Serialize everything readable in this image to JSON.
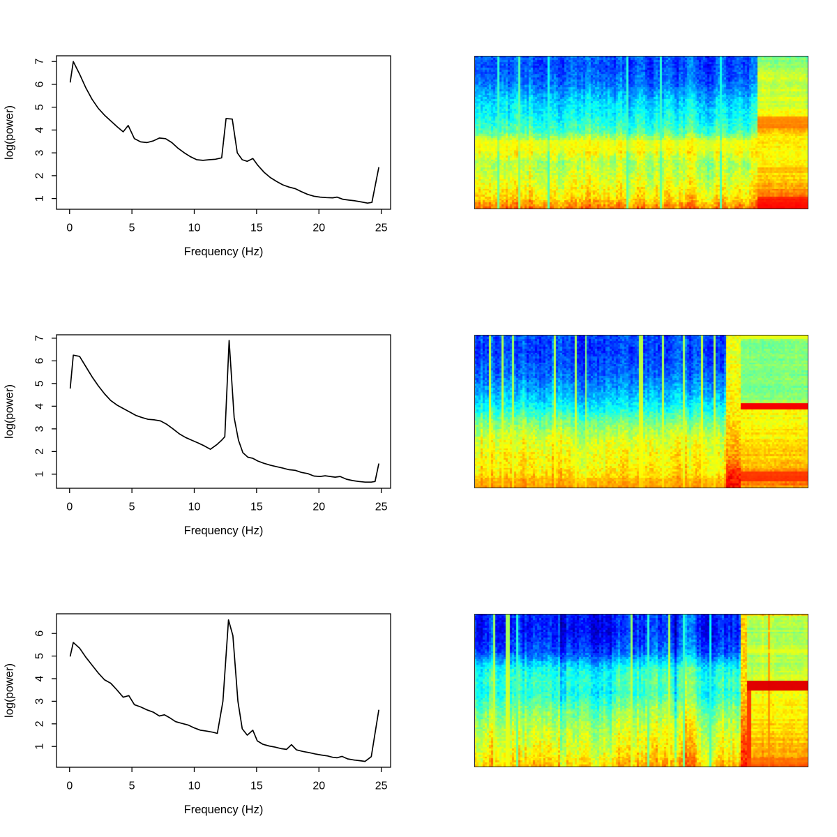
{
  "figure": {
    "background": "#ffffff",
    "line_color": "#000000",
    "n_rows": 3,
    "n_cols": 2
  },
  "chart_data": [
    {
      "type": "line",
      "panel": "row1-left",
      "xlabel": "Frequency (Hz)",
      "ylabel": "log(power)",
      "xlim": [
        -1.05,
        25.75
      ],
      "ylim": [
        0.53,
        7.25
      ],
      "xticks": [
        0,
        5,
        10,
        15,
        20,
        25
      ],
      "yticks": [
        1,
        2,
        3,
        4,
        5,
        6,
        7
      ],
      "line_color": "#000000",
      "grid": false,
      "x": [
        0.05,
        0.3,
        0.8,
        1.3,
        1.8,
        2.3,
        2.8,
        3.3,
        3.8,
        4.3,
        4.7,
        5.2,
        5.7,
        6.2,
        6.7,
        7.2,
        7.7,
        8.2,
        8.7,
        9.2,
        9.7,
        10.2,
        10.7,
        11.2,
        11.7,
        12.2,
        12.55,
        13.05,
        13.45,
        13.85,
        14.25,
        14.7,
        15.1,
        15.6,
        16.1,
        16.6,
        17.1,
        17.6,
        18.1,
        18.6,
        19.1,
        19.6,
        20.1,
        20.6,
        21.1,
        21.45,
        21.9,
        22.4,
        22.9,
        23.4,
        23.9,
        24.25,
        24.8
      ],
      "y": [
        6.1,
        7.0,
        6.45,
        5.85,
        5.35,
        4.95,
        4.65,
        4.4,
        4.15,
        3.92,
        4.2,
        3.62,
        3.48,
        3.45,
        3.52,
        3.65,
        3.62,
        3.45,
        3.2,
        3.0,
        2.83,
        2.7,
        2.67,
        2.7,
        2.72,
        2.78,
        4.5,
        4.48,
        3.0,
        2.7,
        2.63,
        2.75,
        2.45,
        2.15,
        1.92,
        1.75,
        1.6,
        1.5,
        1.43,
        1.3,
        1.18,
        1.1,
        1.06,
        1.04,
        1.03,
        1.06,
        0.97,
        0.93,
        0.9,
        0.85,
        0.8,
        0.83,
        2.35
      ]
    },
    {
      "type": "heatmap",
      "panel": "row1-right",
      "colormap": "jet",
      "description": "spectrogram, time x frequency, low power (blue) at high frequencies, high power (yellow/red) at low frequencies; warmer uniform segment on right 15%",
      "seed": 11,
      "grid": {
        "cols": 160,
        "rows": 78
      },
      "split": 0.849,
      "transition": null,
      "main_profile": [
        [
          0,
          0.22
        ],
        [
          0.06,
          0.2
        ],
        [
          0.18,
          0.24
        ],
        [
          0.3,
          0.34
        ],
        [
          0.42,
          0.4
        ],
        [
          0.5,
          0.46
        ],
        [
          0.56,
          0.6
        ],
        [
          0.63,
          0.62
        ],
        [
          0.7,
          0.55
        ],
        [
          0.78,
          0.58
        ],
        [
          0.86,
          0.62
        ],
        [
          0.93,
          0.66
        ],
        [
          0.97,
          0.72
        ],
        [
          1,
          0.76
        ]
      ],
      "right_profile": [
        [
          0,
          0.48
        ],
        [
          0.08,
          0.55
        ],
        [
          0.2,
          0.58
        ],
        [
          0.35,
          0.6
        ],
        [
          0.42,
          0.7
        ],
        [
          0.48,
          0.72
        ],
        [
          0.55,
          0.64
        ],
        [
          0.65,
          0.62
        ],
        [
          0.75,
          0.66
        ],
        [
          0.85,
          0.7
        ],
        [
          0.92,
          0.78
        ],
        [
          0.97,
          0.86
        ],
        [
          1,
          0.88
        ]
      ],
      "hbands": [
        {
          "region": "right",
          "t0": 0.4,
          "t1": 0.48,
          "v": 0.76,
          "mix": 0.7
        },
        {
          "region": "right",
          "t0": 0.73,
          "t1": 0.77,
          "v": 0.72,
          "mix": 0.5
        },
        {
          "region": "right",
          "t0": 0.92,
          "t1": 1.0,
          "v": 0.86,
          "mix": 0.75
        },
        {
          "region": "main",
          "t0": 0.55,
          "t1": 0.63,
          "v": 0.62,
          "mix": 0.45
        }
      ],
      "vlines": [
        {
          "region": "main",
          "x": 0.07,
          "v": 0.45,
          "w": 0.004
        },
        {
          "region": "main",
          "x": 0.135,
          "v": 0.5,
          "w": 0.003
        },
        {
          "region": "main",
          "x": 0.22,
          "v": 0.42,
          "w": 0.003
        },
        {
          "region": "main",
          "x": 0.46,
          "v": 0.44,
          "w": 0.003
        },
        {
          "region": "main",
          "x": 0.56,
          "v": 0.45,
          "w": 0.003
        },
        {
          "region": "main",
          "x": 0.74,
          "v": 0.42,
          "w": 0.003
        }
      ],
      "streak_amp": 0.09,
      "noise_amp": 0.05
    },
    {
      "type": "line",
      "panel": "row2-left",
      "xlabel": "Frequency (Hz)",
      "ylabel": "log(power)",
      "xlim": [
        -1.05,
        25.75
      ],
      "ylim": [
        0.38,
        7.15
      ],
      "xticks": [
        0,
        5,
        10,
        15,
        20,
        25
      ],
      "yticks": [
        1,
        2,
        3,
        4,
        5,
        6,
        7
      ],
      "line_color": "#000000",
      "grid": false,
      "x": [
        0.05,
        0.3,
        0.8,
        1.3,
        1.8,
        2.3,
        2.8,
        3.3,
        3.8,
        4.3,
        4.8,
        5.3,
        5.8,
        6.3,
        6.8,
        7.3,
        7.8,
        8.3,
        8.8,
        9.3,
        9.8,
        10.3,
        10.8,
        11.3,
        11.8,
        12.2,
        12.45,
        12.8,
        13.2,
        13.55,
        13.9,
        14.3,
        14.7,
        15.1,
        15.6,
        16.1,
        16.6,
        17.1,
        17.6,
        18.1,
        18.6,
        19.1,
        19.6,
        20.1,
        20.5,
        20.9,
        21.3,
        21.7,
        22.2,
        22.7,
        23.2,
        23.7,
        24.2,
        24.5,
        24.8
      ],
      "y": [
        4.8,
        6.25,
        6.2,
        5.75,
        5.3,
        4.9,
        4.55,
        4.25,
        4.05,
        3.9,
        3.75,
        3.6,
        3.5,
        3.42,
        3.4,
        3.35,
        3.2,
        3.0,
        2.78,
        2.62,
        2.5,
        2.38,
        2.25,
        2.1,
        2.3,
        2.5,
        2.65,
        6.9,
        3.5,
        2.5,
        1.95,
        1.75,
        1.7,
        1.58,
        1.48,
        1.4,
        1.33,
        1.27,
        1.2,
        1.17,
        1.08,
        1.03,
        0.92,
        0.9,
        0.93,
        0.9,
        0.87,
        0.9,
        0.78,
        0.72,
        0.68,
        0.65,
        0.65,
        0.68,
        1.45
      ]
    },
    {
      "type": "heatmap",
      "panel": "row2-right",
      "colormap": "jet",
      "description": "spectrogram with yellow/orange vertical transition band at ~76-80% of width; right segment green on top with sharp thin red horizontal line mid-height, yellow-orange below, red band near bottom",
      "seed": 23,
      "grid": {
        "cols": 160,
        "rows": 78
      },
      "split": 0.801,
      "transition": {
        "x0": 0.755,
        "x1": 0.801,
        "profile": [
          [
            0,
            0.6
          ],
          [
            0.3,
            0.62
          ],
          [
            0.5,
            0.64
          ],
          [
            0.8,
            0.72
          ],
          [
            0.92,
            0.85
          ],
          [
            1,
            0.88
          ]
        ]
      },
      "main_profile": [
        [
          0,
          0.2
        ],
        [
          0.1,
          0.18
        ],
        [
          0.25,
          0.22
        ],
        [
          0.38,
          0.3
        ],
        [
          0.48,
          0.38
        ],
        [
          0.58,
          0.5
        ],
        [
          0.68,
          0.58
        ],
        [
          0.78,
          0.62
        ],
        [
          0.88,
          0.64
        ],
        [
          0.95,
          0.68
        ],
        [
          1,
          0.72
        ]
      ],
      "right_profile": [
        [
          0,
          0.62
        ],
        [
          0.02,
          0.5
        ],
        [
          0.3,
          0.5
        ],
        [
          0.43,
          0.52
        ],
        [
          0.5,
          0.62
        ],
        [
          0.62,
          0.63
        ],
        [
          0.72,
          0.65
        ],
        [
          0.82,
          0.68
        ],
        [
          0.9,
          0.72
        ],
        [
          0.96,
          0.78
        ],
        [
          1,
          0.72
        ]
      ],
      "hbands": [
        {
          "region": "right",
          "t0": 0.455,
          "t1": 0.485,
          "v": 0.9,
          "mix": 0.95
        },
        {
          "region": "right",
          "t0": 0.0,
          "t1": 0.02,
          "v": 0.62,
          "mix": 0.8
        },
        {
          "region": "right",
          "t0": 0.9,
          "t1": 0.965,
          "v": 0.84,
          "mix": 0.8
        },
        {
          "region": "main",
          "t0": 0.93,
          "t1": 1.0,
          "v": 0.72,
          "mix": 0.4
        }
      ],
      "vlines": [
        {
          "region": "main",
          "x": 0.045,
          "v": 0.62,
          "w": 0.0035
        },
        {
          "region": "main",
          "x": 0.085,
          "v": 0.6,
          "w": 0.003
        },
        {
          "region": "main",
          "x": 0.115,
          "v": 0.58,
          "w": 0.003
        },
        {
          "region": "main",
          "x": 0.24,
          "v": 0.62,
          "w": 0.0035
        },
        {
          "region": "main",
          "x": 0.305,
          "v": 0.6,
          "w": 0.003
        },
        {
          "region": "main",
          "x": 0.335,
          "v": 0.58,
          "w": 0.003
        },
        {
          "region": "main",
          "x": 0.425,
          "v": 0.6,
          "w": 0.003
        },
        {
          "region": "main",
          "x": 0.5,
          "v": 0.62,
          "w": 0.0035
        },
        {
          "region": "main",
          "x": 0.565,
          "v": 0.6,
          "w": 0.003
        },
        {
          "region": "main",
          "x": 0.63,
          "v": 0.58,
          "w": 0.003
        },
        {
          "region": "main",
          "x": 0.685,
          "v": 0.62,
          "w": 0.003
        },
        {
          "region": "main",
          "x": 0.72,
          "v": 0.6,
          "w": 0.003
        }
      ],
      "streak_amp": 0.08,
      "noise_amp": 0.05
    },
    {
      "type": "line",
      "panel": "row3-left",
      "xlabel": "Frequency (Hz)",
      "ylabel": "log(power)",
      "xlim": [
        -1.05,
        25.75
      ],
      "ylim": [
        0.08,
        6.87
      ],
      "xticks": [
        0,
        5,
        10,
        15,
        20,
        25
      ],
      "yticks": [
        1,
        2,
        3,
        4,
        5,
        6
      ],
      "line_color": "#000000",
      "grid": false,
      "x": [
        0.05,
        0.3,
        0.8,
        1.3,
        1.8,
        2.3,
        2.8,
        3.3,
        3.8,
        4.3,
        4.75,
        5.2,
        5.7,
        6.2,
        6.7,
        7.2,
        7.6,
        8.0,
        8.5,
        9.0,
        9.5,
        10.0,
        10.5,
        11.0,
        11.5,
        11.85,
        12.3,
        12.75,
        13.1,
        13.5,
        13.85,
        14.25,
        14.7,
        15.05,
        15.5,
        16.0,
        16.5,
        17.0,
        17.4,
        17.8,
        18.2,
        18.7,
        19.2,
        19.7,
        20.2,
        20.7,
        21.1,
        21.45,
        21.85,
        22.3,
        22.8,
        23.3,
        23.7,
        24.2,
        24.8
      ],
      "y": [
        5.0,
        5.6,
        5.35,
        4.95,
        4.6,
        4.25,
        3.95,
        3.8,
        3.5,
        3.18,
        3.25,
        2.85,
        2.75,
        2.62,
        2.52,
        2.35,
        2.4,
        2.28,
        2.1,
        2.02,
        1.95,
        1.82,
        1.72,
        1.68,
        1.63,
        1.58,
        3.0,
        6.6,
        5.9,
        3.0,
        1.78,
        1.5,
        1.72,
        1.25,
        1.1,
        1.02,
        0.97,
        0.9,
        0.87,
        1.08,
        0.85,
        0.78,
        0.73,
        0.67,
        0.62,
        0.58,
        0.52,
        0.5,
        0.56,
        0.45,
        0.4,
        0.37,
        0.34,
        0.55,
        2.6
      ]
    },
    {
      "type": "heatmap",
      "panel": "row3-right",
      "colormap": "jet",
      "description": "spectrogram with many cyan/yellow vertical streaks through blue region; right segment yellow-green on top, thick red horizontal band mid-height, yellow-orange below with red vertical lines",
      "seed": 37,
      "grid": {
        "cols": 160,
        "rows": 78
      },
      "split": 0.818,
      "transition": {
        "x0": 0.801,
        "x1": 0.818,
        "profile": [
          [
            0,
            0.68
          ],
          [
            0.4,
            0.66
          ],
          [
            0.6,
            0.7
          ],
          [
            0.85,
            0.8
          ],
          [
            1,
            0.85
          ]
        ]
      },
      "main_profile": [
        [
          0,
          0.17
        ],
        [
          0.12,
          0.16
        ],
        [
          0.25,
          0.22
        ],
        [
          0.36,
          0.4
        ],
        [
          0.44,
          0.44
        ],
        [
          0.52,
          0.42
        ],
        [
          0.62,
          0.5
        ],
        [
          0.72,
          0.56
        ],
        [
          0.82,
          0.6
        ],
        [
          0.92,
          0.64
        ],
        [
          1,
          0.7
        ]
      ],
      "right_profile": [
        [
          0,
          0.7
        ],
        [
          0.02,
          0.55
        ],
        [
          0.12,
          0.53
        ],
        [
          0.25,
          0.56
        ],
        [
          0.35,
          0.54
        ],
        [
          0.42,
          0.6
        ],
        [
          0.52,
          0.62
        ],
        [
          0.65,
          0.64
        ],
        [
          0.78,
          0.66
        ],
        [
          0.88,
          0.7
        ],
        [
          0.95,
          0.74
        ],
        [
          1,
          0.78
        ]
      ],
      "hbands": [
        {
          "region": "right",
          "t0": 0.44,
          "t1": 0.495,
          "v": 0.92,
          "mix": 0.95
        },
        {
          "region": "right",
          "t0": 0.23,
          "t1": 0.26,
          "v": 0.62,
          "mix": 0.6
        },
        {
          "region": "right",
          "t0": 0.1,
          "t1": 0.12,
          "v": 0.6,
          "mix": 0.5
        },
        {
          "region": "right",
          "t0": 0.95,
          "t1": 1.0,
          "v": 0.78,
          "mix": 0.5
        }
      ],
      "vlines": [
        {
          "region": "main",
          "x": 0.06,
          "v": 0.58,
          "w": 0.004
        },
        {
          "region": "main",
          "x": 0.075,
          "v": 0.45,
          "w": 0.003
        },
        {
          "region": "main",
          "x": 0.1,
          "v": 0.6,
          "w": 0.004
        },
        {
          "region": "main",
          "x": 0.13,
          "v": 0.45,
          "w": 0.004
        },
        {
          "region": "main",
          "x": 0.35,
          "v": 0.6,
          "w": 0.003
        },
        {
          "region": "main",
          "x": 0.47,
          "v": 0.58,
          "w": 0.004
        },
        {
          "region": "main",
          "x": 0.52,
          "v": 0.45,
          "w": 0.003
        },
        {
          "region": "main",
          "x": 0.585,
          "v": 0.6,
          "w": 0.003
        },
        {
          "region": "main",
          "x": 0.63,
          "v": 0.45,
          "w": 0.003
        },
        {
          "region": "main",
          "x": 0.71,
          "v": 0.42,
          "w": 0.003
        },
        {
          "region": "main",
          "x": 0.75,
          "v": 0.58,
          "w": 0.003
        },
        {
          "region": "right",
          "x": 0.883,
          "v": 0.74,
          "w": 0.0035
        },
        {
          "region": "right",
          "x": 0.825,
          "v": 0.85,
          "w": 0.004,
          "t0": 0.5,
          "t1": 1
        }
      ],
      "streak_amp": 0.12,
      "noise_amp": 0.05
    }
  ]
}
